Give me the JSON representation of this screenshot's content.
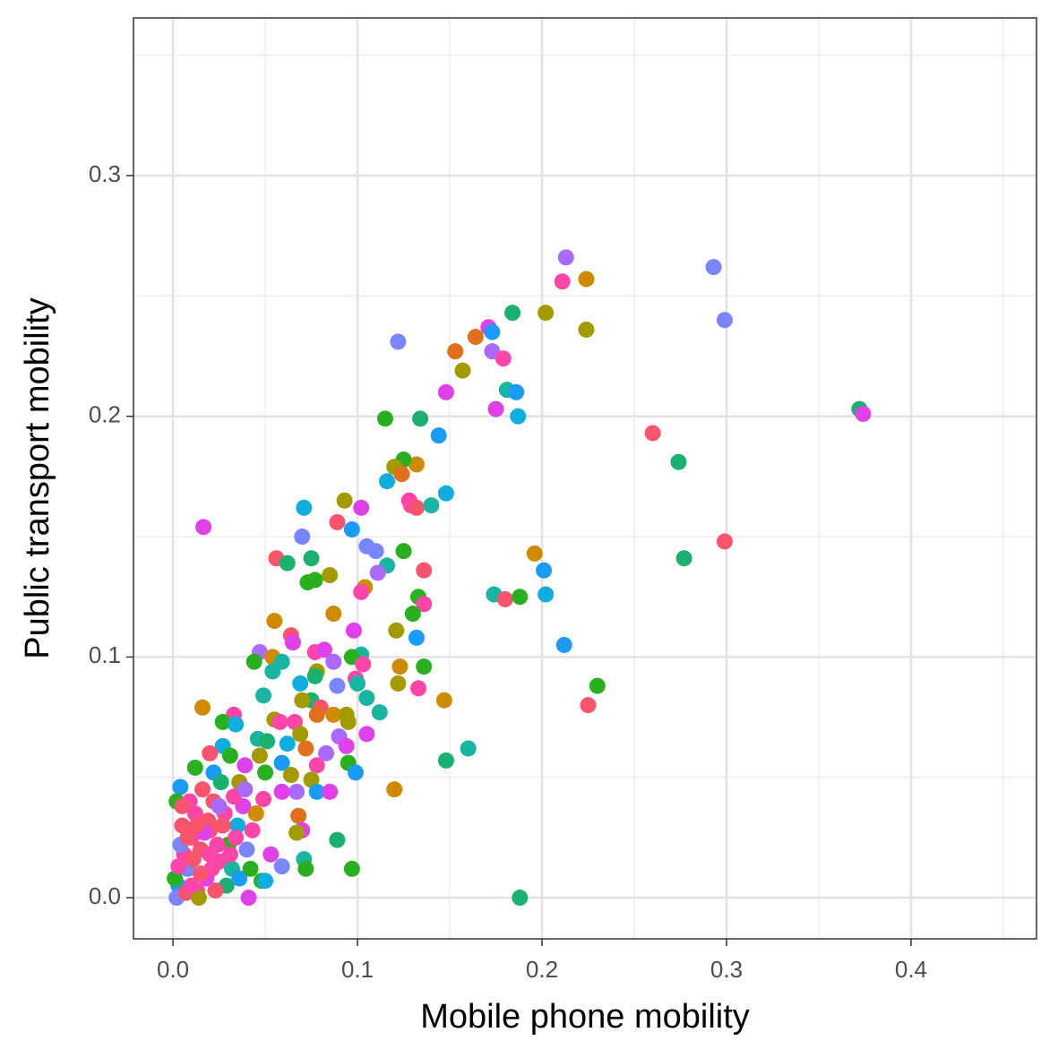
{
  "chart_data": {
    "type": "scatter",
    "x_label": "Mobile phone mobility",
    "y_label": "Public transport mobility",
    "xlim": [
      -0.0214,
      0.468
    ],
    "ylim": [
      -0.0171,
      0.3655
    ],
    "xticks": [
      {
        "value": 0,
        "label": "0.0"
      },
      0.1,
      0.2,
      0.3,
      0.4
    ],
    "yticks": [
      {
        "value": 0,
        "label": "0.0"
      },
      0.1,
      0.2,
      0.3
    ],
    "x_minor_breaks": [
      0.05,
      0.15,
      0.25,
      0.35,
      0.45
    ],
    "y_minor_breaks": [
      0.05,
      0.15,
      0.25,
      0.35
    ],
    "grid": true,
    "x": [
      0.213,
      0.293,
      0.224,
      0.211,
      0.184,
      0.202,
      0.299,
      0.224,
      0.122,
      0.171,
      0.173,
      0.164,
      0.153,
      0.173,
      0.179,
      0.157,
      0.181,
      0.186,
      0.148,
      0.175,
      0.187,
      0.115,
      0.134,
      0.372,
      0.374,
      0.26,
      0.144,
      0.274,
      0.132,
      0.125,
      0.12,
      0.124,
      0.116,
      0.148,
      0.093,
      0.128,
      0.129,
      0.132,
      0.14,
      0.071,
      0.102,
      0.0165,
      0.089,
      0.097,
      0.07,
      0.299,
      0.196,
      0.105,
      0.11,
      0.125,
      0.056,
      0.075,
      0.062,
      0.116,
      0.277,
      0.201,
      0.136,
      0.111,
      0.085,
      0.073,
      0.077,
      0.104,
      0.102,
      0.174,
      0.18,
      0.188,
      0.202,
      0.133,
      0.136,
      0.13,
      0.087,
      0.055,
      0.098,
      0.121,
      0.132,
      0.212,
      0.064,
      0.065,
      0.077,
      0.082,
      0.047,
      0.102,
      0.097,
      0.054,
      0.044,
      0.059,
      0.087,
      0.103,
      0.123,
      0.136,
      0.054,
      0.078,
      0.099,
      0.069,
      0.077,
      0.089,
      0.122,
      0.23,
      0.133,
      0.1,
      0.049,
      0.075,
      0.105,
      0.147,
      0.07,
      0.016,
      0.225,
      0.08,
      0.112,
      0.033,
      0.087,
      0.094,
      0.078,
      0.027,
      0.055,
      0.066,
      0.058,
      0.095,
      0.034,
      0.069,
      0.105,
      0.09,
      0.046,
      0.051,
      0.062,
      0.027,
      0.094,
      0.072,
      0.16,
      0.02,
      0.083,
      0.047,
      0.031,
      0.148,
      0.095,
      0.078,
      0.059,
      0.039,
      0.012,
      0.099,
      0.022,
      0.05,
      0.064,
      0.075,
      0.036,
      0.12,
      0.067,
      0.078,
      0.085,
      0.059,
      0.004,
      0.049,
      0.002,
      0.068,
      0.07,
      0.089,
      0.067,
      0.053,
      0.071,
      0.059,
      0.072,
      0.097,
      0.048,
      0.05,
      0.041,
      0.188,
      0.005,
      0.01,
      0.015,
      0.008,
      0.003,
      0.012,
      0.02,
      0.025,
      0.018,
      0.03,
      0.028,
      0.035,
      0.022,
      0.006,
      0.001,
      0.013,
      0.032,
      0.04,
      0.038,
      0.043,
      0.016,
      0.026,
      0.009,
      0.004,
      0.019,
      0.024,
      0.011,
      0.029,
      0.033,
      0.045,
      0.002,
      0.007,
      0.014,
      0.021,
      0.017,
      0.027,
      0.036,
      0.031,
      0.005,
      0.01,
      0.023,
      0.003,
      0.042,
      0.039,
      0.013,
      0.008,
      0.02,
      0.015,
      0.025,
      0.034
    ],
    "values": [
      0.266,
      0.262,
      0.257,
      0.256,
      0.243,
      0.243,
      0.24,
      0.236,
      0.231,
      0.237,
      0.235,
      0.233,
      0.227,
      0.227,
      0.224,
      0.219,
      0.211,
      0.21,
      0.21,
      0.203,
      0.2,
      0.199,
      0.199,
      0.203,
      0.201,
      0.193,
      0.192,
      0.181,
      0.18,
      0.182,
      0.179,
      0.176,
      0.173,
      0.168,
      0.165,
      0.165,
      0.163,
      0.162,
      0.163,
      0.162,
      0.162,
      0.154,
      0.156,
      0.153,
      0.15,
      0.148,
      0.143,
      0.146,
      0.144,
      0.144,
      0.141,
      0.141,
      0.139,
      0.138,
      0.141,
      0.136,
      0.136,
      0.135,
      0.134,
      0.131,
      0.132,
      0.129,
      0.127,
      0.126,
      0.124,
      0.125,
      0.126,
      0.125,
      0.122,
      0.118,
      0.118,
      0.115,
      0.111,
      0.111,
      0.108,
      0.105,
      0.109,
      0.106,
      0.102,
      0.103,
      0.102,
      0.101,
      0.1,
      0.1,
      0.098,
      0.098,
      0.098,
      0.097,
      0.096,
      0.096,
      0.094,
      0.094,
      0.091,
      0.089,
      0.092,
      0.088,
      0.089,
      0.088,
      0.087,
      0.089,
      0.084,
      0.082,
      0.083,
      0.082,
      0.082,
      0.079,
      0.08,
      0.079,
      0.077,
      0.076,
      0.076,
      0.076,
      0.076,
      0.073,
      0.074,
      0.073,
      0.073,
      0.073,
      0.072,
      0.068,
      0.068,
      0.067,
      0.066,
      0.065,
      0.064,
      0.063,
      0.063,
      0.062,
      0.062,
      0.06,
      0.06,
      0.059,
      0.059,
      0.057,
      0.056,
      0.055,
      0.056,
      0.055,
      0.054,
      0.052,
      0.052,
      0.052,
      0.051,
      0.049,
      0.048,
      0.045,
      0.044,
      0.044,
      0.044,
      0.044,
      0.046,
      0.041,
      0.04,
      0.034,
      0.028,
      0.024,
      0.027,
      0.018,
      0.016,
      0.013,
      0.012,
      0.012,
      0.007,
      0.007,
      0.0,
      0.0,
      0.03,
      0.025,
      0.02,
      0.012,
      0.005,
      0.035,
      0.028,
      0.015,
      0.008,
      0.022,
      0.035,
      0.03,
      0.04,
      0.018,
      0.008,
      0.003,
      0.012,
      0.02,
      0.038,
      0.028,
      0.045,
      0.048,
      0.04,
      0.022,
      0.032,
      0.022,
      0.016,
      0.005,
      0.042,
      0.035,
      0.0,
      0.002,
      0.0,
      0.012,
      0.027,
      0.03,
      0.008,
      0.018,
      0.038,
      0.005,
      0.003,
      0.013,
      0.012,
      0.045,
      0.03,
      0.025,
      0.018,
      0.01,
      0.038,
      0.025
    ],
    "colors": [
      "#A96BFF",
      "#7A86FF",
      "#CF8A00",
      "#FF45A8",
      "#1AB070",
      "#A39A00",
      "#7A86FF",
      "#A39A00",
      "#7A86FF",
      "#E040E8",
      "#199CF5",
      "#E0701E",
      "#E0701E",
      "#A96BFF",
      "#FF45A8",
      "#A39A00",
      "#18B5A3",
      "#199CF5",
      "#E040E8",
      "#E040E8",
      "#10AEE0",
      "#28B01E",
      "#1AB070",
      "#1AB070",
      "#E040E8",
      "#F8546E",
      "#199CF5",
      "#1AB070",
      "#CF8A00",
      "#28B01E",
      "#A39A00",
      "#E0701E",
      "#10AEE0",
      "#10AEE0",
      "#A39A00",
      "#FF45A8",
      "#FF45A8",
      "#F8546E",
      "#18B5A3",
      "#10AEE0",
      "#E040E8",
      "#E040E8",
      "#F8546E",
      "#199CF5",
      "#7A86FF",
      "#F8546E",
      "#CF8A00",
      "#7A86FF",
      "#7A86FF",
      "#28B01E",
      "#F8546E",
      "#1AB070",
      "#1AB070",
      "#18B5A3",
      "#1AB070",
      "#199CF5",
      "#F8546E",
      "#A96BFF",
      "#A39A00",
      "#28B01E",
      "#28B01E",
      "#CF8A00",
      "#FF45A8",
      "#18B5A3",
      "#F8546E",
      "#28B01E",
      "#10AEE0",
      "#28B01E",
      "#FF45A8",
      "#28B01E",
      "#CF8A00",
      "#CF8A00",
      "#E040E8",
      "#A39A00",
      "#199CF5",
      "#199CF5",
      "#F8546E",
      "#E040E8",
      "#FF45A8",
      "#E040E8",
      "#A96BFF",
      "#18B5A3",
      "#28B01E",
      "#CF8A00",
      "#28B01E",
      "#18B5A3",
      "#A96BFF",
      "#FF45A8",
      "#CF8A00",
      "#28B01E",
      "#18B5A3",
      "#A39A00",
      "#FF45A8",
      "#10AEE0",
      "#1AB070",
      "#7A86FF",
      "#A39A00",
      "#28B01E",
      "#FF45A8",
      "#18B5A3",
      "#18B5A3",
      "#1AB070",
      "#18B5A3",
      "#CF8A00",
      "#A39A00",
      "#CF8A00",
      "#F8546E",
      "#F8546E",
      "#18B5A3",
      "#FF45A8",
      "#CF8A00",
      "#A39A00",
      "#E0701E",
      "#28B01E",
      "#A39A00",
      "#FF45A8",
      "#FF45A8",
      "#A39A00",
      "#10AEE0",
      "#A39A00",
      "#E040E8",
      "#A96BFF",
      "#18B5A3",
      "#1AB070",
      "#10AEE0",
      "#10AEE0",
      "#E040E8",
      "#E0701E",
      "#18B5A3",
      "#F8546E",
      "#A96BFF",
      "#A39A00",
      "#28B01E",
      "#1AB070",
      "#28B01E",
      "#FF45A8",
      "#199CF5",
      "#E040E8",
      "#28B01E",
      "#199CF5",
      "#199CF5",
      "#28B01E",
      "#A39A00",
      "#A39A00",
      "#A39A00",
      "#CF8A00",
      "#A96BFF",
      "#199CF5",
      "#E040E8",
      "#E040E8",
      "#199CF5",
      "#FF45A8",
      "#28B01E",
      "#E0701E",
      "#E040E8",
      "#1AB070",
      "#A39A00",
      "#E040E8",
      "#18B5A3",
      "#7A86FF",
      "#28B01E",
      "#28B01E",
      "#28B01E",
      "#10AEE0",
      "#E040E8",
      "#1AB070",
      "#F8546E",
      "#FF45A8",
      "#F8546E",
      "#7A86FF",
      "#199CF5",
      "#FF45A8",
      "#F8546E",
      "#FF45A8",
      "#E040E8",
      "#28B01E",
      "#FF45A8",
      "#10AEE0",
      "#F8546E",
      "#FF45A8",
      "#28B01E",
      "#FF45A8",
      "#18B5A3",
      "#7A86FF",
      "#E040E8",
      "#FF45A8",
      "#F8546E",
      "#1AB070",
      "#FF45A8",
      "#7A86FF",
      "#F8546E",
      "#FF45A8",
      "#F8546E",
      "#1AB070",
      "#FF45A8",
      "#CF8A00",
      "#7A86FF",
      "#F8546E",
      "#A39A00",
      "#FF45A8",
      "#E040E8",
      "#F8546E",
      "#199CF5",
      "#FF45A8",
      "#F8546E",
      "#FF45A8",
      "#F8546E",
      "#FF45A8",
      "#28B01E",
      "#A96BFF",
      "#F8546E",
      "#F8546E",
      "#FF45A8",
      "#F8546E",
      "#A96BFF",
      "#FF45A8"
    ]
  }
}
